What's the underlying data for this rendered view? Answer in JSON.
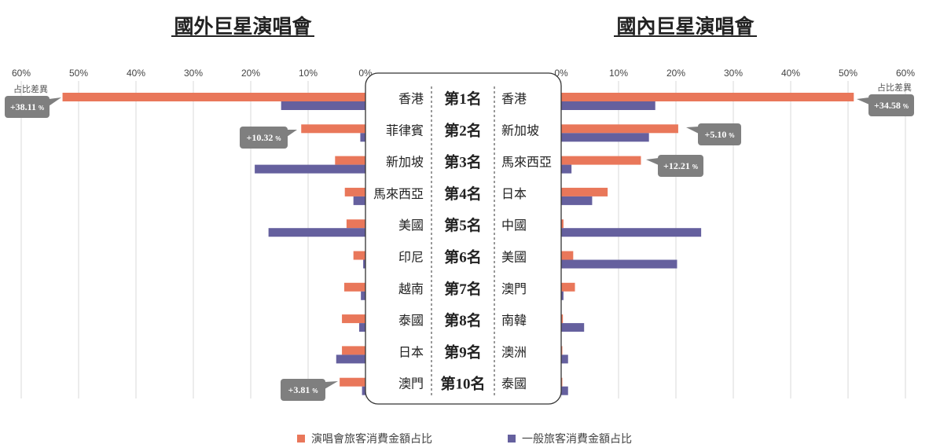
{
  "chart_data": [
    {
      "type": "bar",
      "orientation": "horizontal",
      "title": "國外巨星演唱會",
      "ylabel": "",
      "xlabel": "",
      "xlim": [
        0,
        60
      ],
      "x_reversed": true,
      "tick_labels": [
        "60%",
        "50%",
        "40%",
        "30%",
        "20%",
        "10%",
        "0%"
      ],
      "grid": true,
      "categories": [
        "香港",
        "菲律賓",
        "新加坡",
        "馬來西亞",
        "美國",
        "印尼",
        "越南",
        "泰國",
        "日本",
        "澳門"
      ],
      "series": [
        {
          "name": "演唱會旅客消費金額占比",
          "color": "#E9775A",
          "values": [
            52.8,
            11.2,
            5.3,
            3.6,
            3.3,
            2.1,
            3.7,
            4.1,
            4.1,
            4.5
          ]
        },
        {
          "name": "一般旅客消費金額占比",
          "color": "#65609E",
          "values": [
            14.7,
            0.9,
            19.3,
            2.1,
            16.9,
            0.4,
            0.8,
            1.1,
            5.1,
            0.6
          ]
        }
      ],
      "annotations": [
        {
          "category": "香港",
          "text": "+38.11",
          "unit": "%"
        },
        {
          "category": "菲律賓",
          "text": "+10.32",
          "unit": "%"
        },
        {
          "category": "澳門",
          "text": "+3.81",
          "unit": "%"
        }
      ],
      "annotation_header": "占比差異"
    },
    {
      "type": "bar",
      "orientation": "horizontal",
      "title": "國內巨星演唱會",
      "ylabel": "",
      "xlabel": "",
      "xlim": [
        0,
        60
      ],
      "x_reversed": false,
      "tick_labels": [
        "0%",
        "10%",
        "20%",
        "30%",
        "40%",
        "50%",
        "60%"
      ],
      "grid": true,
      "categories": [
        "香港",
        "新加坡",
        "馬來西亞",
        "日本",
        "中國",
        "美國",
        "澳門",
        "南韓",
        "澳洲",
        "泰國"
      ],
      "series": [
        {
          "name": "演唱會旅客消費金額占比",
          "color": "#E9775A",
          "values": [
            51.0,
            20.4,
            13.9,
            8.1,
            0.4,
            2.1,
            2.4,
            0.3,
            0.2,
            0.2
          ]
        },
        {
          "name": "一般旅客消費金額占比",
          "color": "#65609E",
          "values": [
            16.4,
            15.3,
            1.8,
            5.4,
            24.4,
            20.2,
            0.4,
            4.0,
            1.2,
            1.2
          ]
        }
      ],
      "annotations": [
        {
          "category": "香港",
          "text": "+34.58",
          "unit": "%"
        },
        {
          "category": "新加坡",
          "text": "+5.10",
          "unit": "%"
        },
        {
          "category": "馬來西亞",
          "text": "+12.21",
          "unit": "%"
        }
      ],
      "annotation_header": "占比差異"
    }
  ],
  "ranks": [
    "第1名",
    "第2名",
    "第3名",
    "第4名",
    "第5名",
    "第6名",
    "第7名",
    "第8名",
    "第9名",
    "第10名"
  ],
  "legend": [
    {
      "label": "演唱會旅客消費金額占比",
      "color": "#E9775A"
    },
    {
      "label": "一般旅客消費金額占比",
      "color": "#65609E"
    }
  ]
}
